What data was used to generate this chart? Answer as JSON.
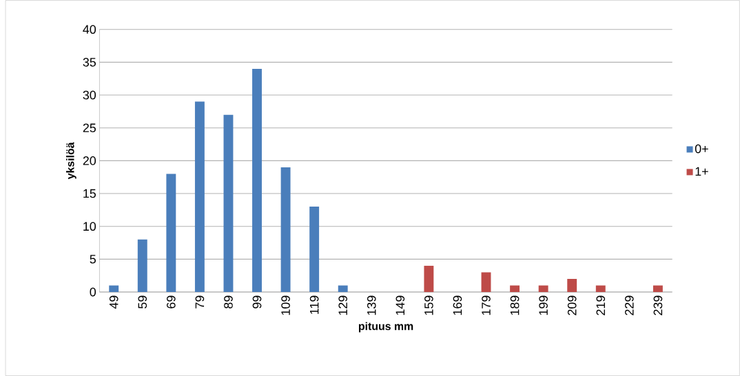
{
  "chart_data": {
    "type": "bar",
    "xlabel": "pituus mm",
    "ylabel": "yksilöä",
    "categories": [
      "49",
      "59",
      "69",
      "79",
      "89",
      "99",
      "109",
      "119",
      "129",
      "139",
      "149",
      "159",
      "169",
      "179",
      "189",
      "199",
      "209",
      "219",
      "229",
      "239"
    ],
    "series": [
      {
        "name": "0+",
        "color": "#4a7ebb",
        "values": [
          1,
          8,
          18,
          29,
          27,
          34,
          19,
          13,
          1,
          null,
          null,
          null,
          null,
          null,
          null,
          null,
          null,
          null,
          null,
          null
        ]
      },
      {
        "name": "1+",
        "color": "#be4b48",
        "values": [
          null,
          null,
          null,
          null,
          null,
          null,
          null,
          null,
          null,
          null,
          null,
          4,
          null,
          3,
          1,
          1,
          2,
          1,
          null,
          1
        ]
      }
    ],
    "ylim": [
      0,
      40
    ],
    "yticks": [
      0,
      5,
      10,
      15,
      20,
      25,
      30,
      35,
      40
    ],
    "grid": "y",
    "legend": "right"
  }
}
